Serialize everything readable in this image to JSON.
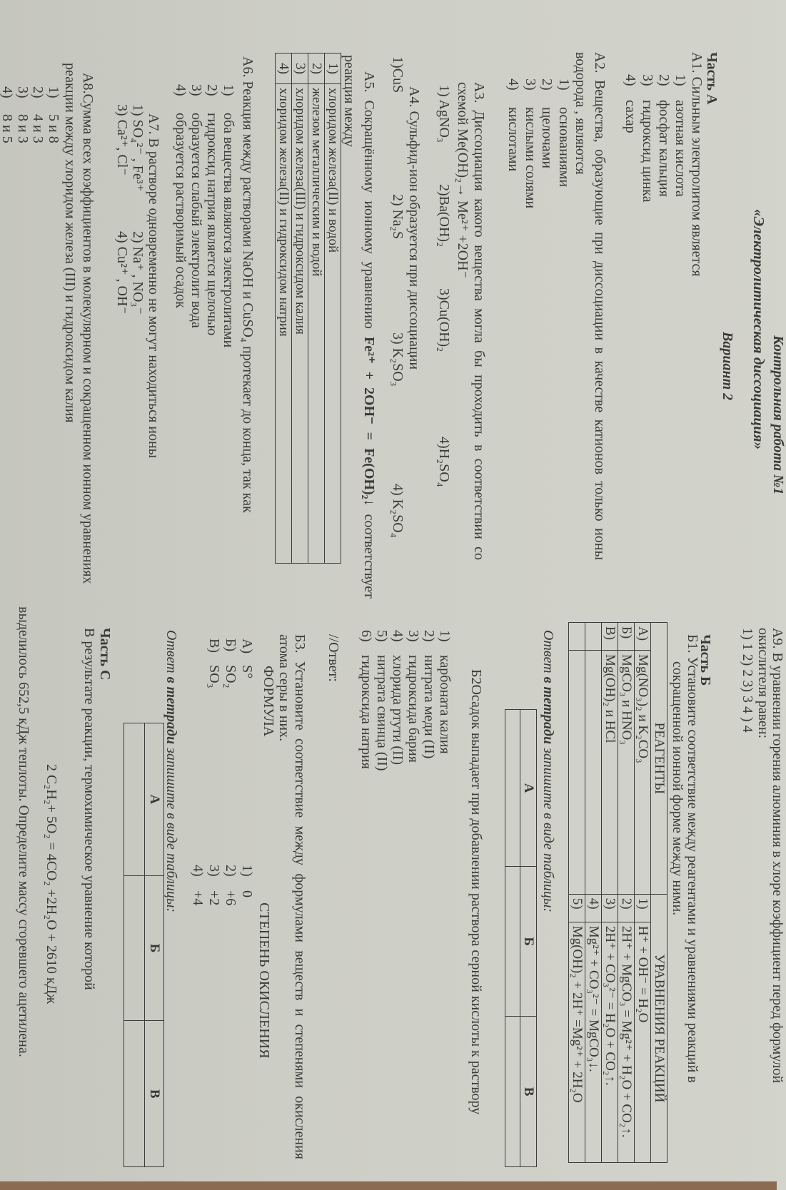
{
  "header": {
    "cut_title": "Контрольная работа №1",
    "title": "«Электролитическая диссоциация»",
    "variant": "Вариант 2"
  },
  "part_a": {
    "heading": "Часть А",
    "a1": {
      "question": "А1. Сильным электролитом является",
      "options": [
        {
          "n": "1)",
          "t": "азотная кислота"
        },
        {
          "n": "2)",
          "t": "фосфат кальция"
        },
        {
          "n": "3)",
          "t": "гидроксид цинка"
        },
        {
          "n": "4)",
          "t": "сахар"
        }
      ]
    },
    "a2": {
      "line1": "А2. Вещества, образующие при диссоциации в качестве катионов только ионы",
      "line2": "водорода , являются",
      "options": [
        {
          "n": "1)",
          "t": "основаниями"
        },
        {
          "n": "2)",
          "t": "щелочами"
        },
        {
          "n": "3)",
          "t": "кислыми солями"
        },
        {
          "n": "4)",
          "t": "кислотами"
        }
      ]
    },
    "a3": {
      "line1": "А3. Диссоциация какого вещества могла бы проходить в соответствии со",
      "line2": "схемой Me(OH)₂→ Me²⁺ +2OH⁻",
      "options": [
        "1)  AgNO₃",
        "2)Ba(OH)₂",
        "3)Cu(OH)₂",
        "4)H₂SO₄"
      ]
    },
    "a4": {
      "question": "А4. Сульфид-ион образуется при диссоциации",
      "options": [
        "1)CuS",
        "2) Na₂S",
        "3) K₂SO₃",
        "4) K₂SO₄"
      ]
    },
    "a5": {
      "prefix": "А5. Сокращённому ионному уравнению",
      "equation": "Fe²⁺ + 2OH⁻ = Fe(OH)₂↓",
      "suffix": "соответствует",
      "line2": "реакция между",
      "rows": [
        {
          "n": "1)",
          "t": "хлоридом железа(II) и водой"
        },
        {
          "n": "2)",
          "t": "железом металлическим и водой"
        },
        {
          "n": "3)",
          "t": "хлоридом железа(III) и гидроксидом калия"
        },
        {
          "n": "4)",
          "t": "хлоридом железа(II) и гидроксидом натрия"
        }
      ]
    },
    "a6": {
      "question": "А6. Реакция между растворами NaOH и CuSO₄ протекает до конца, так как",
      "options": [
        {
          "n": "1)",
          "t": "оба вещества являются электролитами"
        },
        {
          "n": "2)",
          "t": "гидроксид натрия является щелочью"
        },
        {
          "n": "3)",
          "t": "образуется слабый электролит вода"
        },
        {
          "n": "4)",
          "t": "образуется растворимый осадок"
        }
      ]
    },
    "a7": {
      "question": "А7. В растворе одновременно не могут находиться ионы",
      "options": [
        "1) SO₄²⁻ , Fe³⁺",
        "2) Na⁺ , NO₃⁻",
        "3) Ca²⁺, Cl⁻",
        "4) Cu²⁺ , OH⁻"
      ]
    },
    "a8": {
      "line1": "А8.Сумма всех коэффициентов в молекулярном и сокращенном ионном уравнениях",
      "line2": "реакции между хлоридом железа (III) и гидроксидом калия",
      "options": [
        {
          "n": "1)",
          "t": "5 и 8"
        },
        {
          "n": "2)",
          "t": "4 и 3"
        },
        {
          "n": "3)",
          "t": "8 и 3"
        },
        {
          "n": "4)",
          "t": "8 и 5"
        }
      ]
    }
  },
  "a9": {
    "cut_line": "А9. В уравнении горения алюминия в хлоре коэффициент перед формулой",
    "line2": "окислителя равен:",
    "options": "1) 1  2) 2   3) 3   4 ) 4"
  },
  "part_b": {
    "heading": "Часть Б",
    "b1": {
      "line1": "Б1. Установите соответствие между реагентами и уравнениями реакций в",
      "line2": "сокращенной ионной форме между ними.",
      "col_reagents": "РЕАГЕНТЫ",
      "col_equations": "УРАВНЕНИЯ РЕАКЦИЙ",
      "reagents": [
        {
          "l": "А)",
          "t": "Mg(NO₃)₂ и K₂CO₃"
        },
        {
          "l": "Б)",
          "t": "MgCO₃ и HNO₃"
        },
        {
          "l": "В)",
          "t": "Mg(OH)₂ и HCl"
        }
      ],
      "equations": [
        {
          "n": "1)",
          "t": "H⁺ + OH⁻ = H₂O"
        },
        {
          "n": "2)",
          "t": "2H⁺ + MgCO₃ = Mg²⁺ + H₂O + CO₂↑."
        },
        {
          "n": "3)",
          "t": "2H⁺ + CO₃²⁻ = H₂O + CO₂↑."
        },
        {
          "n": "4)",
          "t": "Mg²⁺ + CO₃²⁻ = MgCO₃↓."
        },
        {
          "n": "5)",
          "t": "Mg(OH)₂ + 2H⁺ =Mg²⁺ + 2H₂O"
        }
      ]
    },
    "answer_note_prefix": "Ответ",
    "answer_note_bold": "в тетради",
    "answer_note_suffix": "запишите в виде таблицы:",
    "answer_cols": [
      "А",
      "Б",
      "В"
    ],
    "b2": {
      "question": "Б2Осадок выпадает при добавлении раствора серной кислоты к раствору",
      "options": [
        {
          "n": "1)",
          "t": "карбоната калия"
        },
        {
          "n": "2)",
          "t": "нитрата меди (II)"
        },
        {
          "n": "3)",
          "t": "гидроксида бария"
        },
        {
          "n": "4)",
          "t": "хлорида ртути (II)"
        },
        {
          "n": "5)",
          "t": "нитрата свинца (II)"
        },
        {
          "n": "6)",
          "t": "гидроксида натрия"
        }
      ],
      "answer": "//Ответ:"
    },
    "b3": {
      "line1": "Б3. Установите соответствие между формулами веществ и степенями окисления",
      "line2": "атома серы в них.",
      "col_formula": "ФОРМУЛА",
      "col_state": "СТЕПЕНЬ ОКИСЛЕНИЯ",
      "formulas": [
        {
          "l": "А)",
          "t": "S°"
        },
        {
          "l": "Б)",
          "t": "SO₂"
        },
        {
          "l": "В)",
          "t": "SO₃"
        }
      ],
      "states": [
        {
          "n": "1)",
          "t": "0"
        },
        {
          "n": "2)",
          "t": "+6"
        },
        {
          "n": "3)",
          "t": "+2"
        },
        {
          "n": "4)",
          "t": "+4"
        }
      ]
    }
  },
  "part_c": {
    "heading": "Часть С",
    "line1": "В результате реакции, термохимическое уравнение которой",
    "equation": "2 C₂H₂+ 5O₂  = 4CO₂ +2H₂O + 2610  кДж",
    "line2": "выделилось 652,5 кДж теплоты. Определите массу сгоревшего ацетилена."
  }
}
